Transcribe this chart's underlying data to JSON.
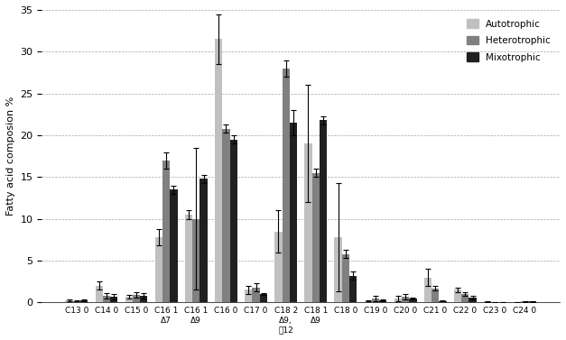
{
  "categories": [
    "C13 0",
    "C14 0",
    "C15 0",
    "C16 1\nΔ7",
    "C16 1\nΔ9",
    "C16 0",
    "C17 0",
    "C18 2\nΔ9,\n㥉12",
    "C18 1\nΔ9",
    "C18 0",
    "C19 0",
    "C20 0",
    "C21 0",
    "C22 0",
    "C23 0",
    "C24 0"
  ],
  "autotrophic": [
    0.3,
    2.0,
    0.7,
    7.8,
    10.5,
    31.5,
    1.5,
    8.5,
    19.0,
    7.8,
    0.2,
    0.5,
    3.0,
    1.5,
    0.1,
    0.05
  ],
  "heterotrophic": [
    0.2,
    0.8,
    0.9,
    17.0,
    10.0,
    20.8,
    1.8,
    28.0,
    15.5,
    5.8,
    0.5,
    0.7,
    1.7,
    1.0,
    0.05,
    0.1
  ],
  "mixotrophic": [
    0.3,
    0.7,
    0.8,
    13.5,
    14.8,
    19.5,
    1.0,
    21.5,
    21.8,
    3.2,
    0.3,
    0.5,
    0.2,
    0.6,
    0.05,
    0.1
  ],
  "autotrophic_err": [
    0.1,
    0.5,
    0.2,
    1.0,
    0.5,
    3.0,
    0.5,
    2.5,
    7.0,
    6.5,
    0.1,
    0.3,
    1.0,
    0.3,
    0.05,
    0.02
  ],
  "heterotrophic_err": [
    0.1,
    0.3,
    0.3,
    1.0,
    8.5,
    0.5,
    0.5,
    1.0,
    0.5,
    0.5,
    0.3,
    0.3,
    0.3,
    0.2,
    0.02,
    0.05
  ],
  "mixotrophic_err": [
    0.1,
    0.3,
    0.3,
    0.5,
    0.5,
    0.5,
    0.1,
    1.5,
    0.5,
    0.5,
    0.1,
    0.1,
    0.1,
    0.2,
    0.02,
    0.05
  ],
  "color_auto": "#c0c0c0",
  "color_hetero": "#808080",
  "color_mixo": "#202020",
  "ylabel": "Fatty acid composion %",
  "ylim": [
    0,
    35
  ],
  "yticks": [
    0,
    5,
    10,
    15,
    20,
    25,
    30,
    35
  ],
  "legend_labels": [
    "Autotrophic",
    "Heterotrophic",
    "Mixotrophic"
  ],
  "bar_width": 0.25
}
